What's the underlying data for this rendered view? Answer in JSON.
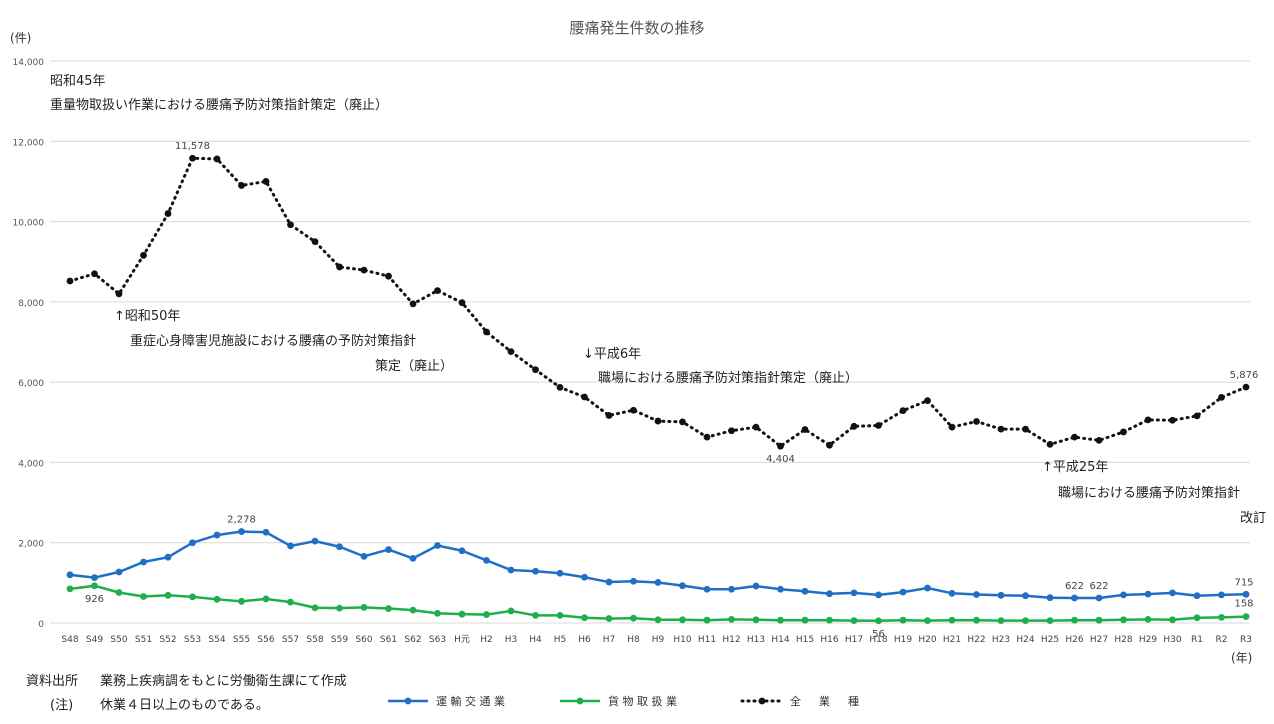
{
  "chart_data": {
    "type": "line",
    "title": "腰痛発生件数の推移",
    "ylabel": "(件)",
    "xlabel": "(年)",
    "ylim": [
      0,
      14000
    ],
    "yticks": [
      0,
      2000,
      4000,
      6000,
      8000,
      10000,
      12000,
      14000
    ],
    "ytick_labels": [
      "0",
      "2,000",
      "4,000",
      "6,000",
      "8,000",
      "10,000",
      "12,000",
      "14,000"
    ],
    "grid": true,
    "legend": "bottom",
    "categories": [
      "S48",
      "S49",
      "S50",
      "S51",
      "S52",
      "S53",
      "S54",
      "S55",
      "S56",
      "S57",
      "S58",
      "S59",
      "S60",
      "S61",
      "S62",
      "S63",
      "H元",
      "H2",
      "H3",
      "H4",
      "H5",
      "H6",
      "H7",
      "H8",
      "H9",
      "H10",
      "H11",
      "H12",
      "H13",
      "H14",
      "H15",
      "H16",
      "H17",
      "H18",
      "H19",
      "H20",
      "H21",
      "H22",
      "H23",
      "H24",
      "H25",
      "H26",
      "H27",
      "H28",
      "H29",
      "H30",
      "R1",
      "R2",
      "R3"
    ],
    "series": [
      {
        "name": "運 輸 交 通 業",
        "color": "#1f6fc5",
        "style": "solid",
        "values": [
          1200,
          1130,
          1270,
          1520,
          1640,
          2000,
          2190,
          2278,
          2260,
          1920,
          2040,
          1900,
          1660,
          1830,
          1610,
          1930,
          1800,
          1560,
          1320,
          1290,
          1240,
          1140,
          1020,
          1040,
          1010,
          930,
          840,
          840,
          920,
          840,
          790,
          730,
          750,
          700,
          770,
          870,
          740,
          710,
          690,
          680,
          630,
          622,
          622,
          700,
          720,
          750,
          680,
          700,
          715
        ]
      },
      {
        "name": "貨 物 取 扱 業",
        "color": "#1fae4b",
        "style": "solid",
        "values": [
          850,
          926,
          760,
          660,
          690,
          650,
          590,
          540,
          600,
          520,
          380,
          370,
          390,
          360,
          320,
          240,
          220,
          210,
          300,
          190,
          190,
          130,
          110,
          120,
          80,
          80,
          70,
          90,
          80,
          70,
          70,
          70,
          60,
          56,
          70,
          60,
          70,
          70,
          60,
          60,
          60,
          70,
          70,
          80,
          90,
          80,
          130,
          140,
          158
        ]
      },
      {
        "name": "全 　 業 　 種",
        "color": "#111111",
        "style": "dotted",
        "values": [
          8520,
          8700,
          8200,
          9160,
          10200,
          11578,
          11560,
          10900,
          11000,
          9920,
          9500,
          8870,
          8790,
          8640,
          7950,
          8280,
          7980,
          7250,
          6760,
          6310,
          5870,
          5630,
          5170,
          5300,
          5030,
          5010,
          4630,
          4790,
          4880,
          4404,
          4820,
          4430,
          4900,
          4920,
          5290,
          5540,
          4880,
          5020,
          4830,
          4830,
          4450,
          4630,
          4550,
          4760,
          5060,
          5050,
          5160,
          5620,
          5876
        ]
      }
    ],
    "data_labels": [
      {
        "series": 2,
        "index": 5,
        "text": "11,578"
      },
      {
        "series": 2,
        "index": 29,
        "text": "4,404"
      },
      {
        "series": 2,
        "index": 48,
        "text": "5,876"
      },
      {
        "series": 0,
        "index": 7,
        "text": "2,278"
      },
      {
        "series": 0,
        "index": 41,
        "text": "622"
      },
      {
        "series": 0,
        "index": 42,
        "text": "622"
      },
      {
        "series": 0,
        "index": 48,
        "text": "715"
      },
      {
        "series": 1,
        "index": 1,
        "text": "926"
      },
      {
        "series": 1,
        "index": 33,
        "text": "56"
      },
      {
        "series": 1,
        "index": 48,
        "text": "158"
      }
    ]
  },
  "annotations": {
    "s45_year": "昭和45年",
    "s45_text": "重量物取扱い作業における腰痛予防対策指針策定（廃止）",
    "s50_year": "↑昭和50年",
    "s50_text1": "重症心身障害児施設における腰痛の予防対策指針",
    "s50_text2": "策定（廃止）",
    "h6_year": "↓平成6年",
    "h6_text": "職場における腰痛予防対策指針策定（廃止）",
    "h25_year": "↑平成25年",
    "h25_text1": "職場における腰痛予防対策指針",
    "h25_text2": "改訂"
  },
  "footer": {
    "source_label": "資料出所",
    "source_text": "業務上疾病調をもとに労働衛生課にて作成",
    "note_label": "(注)",
    "note_text": "休業４日以上のものである。"
  }
}
